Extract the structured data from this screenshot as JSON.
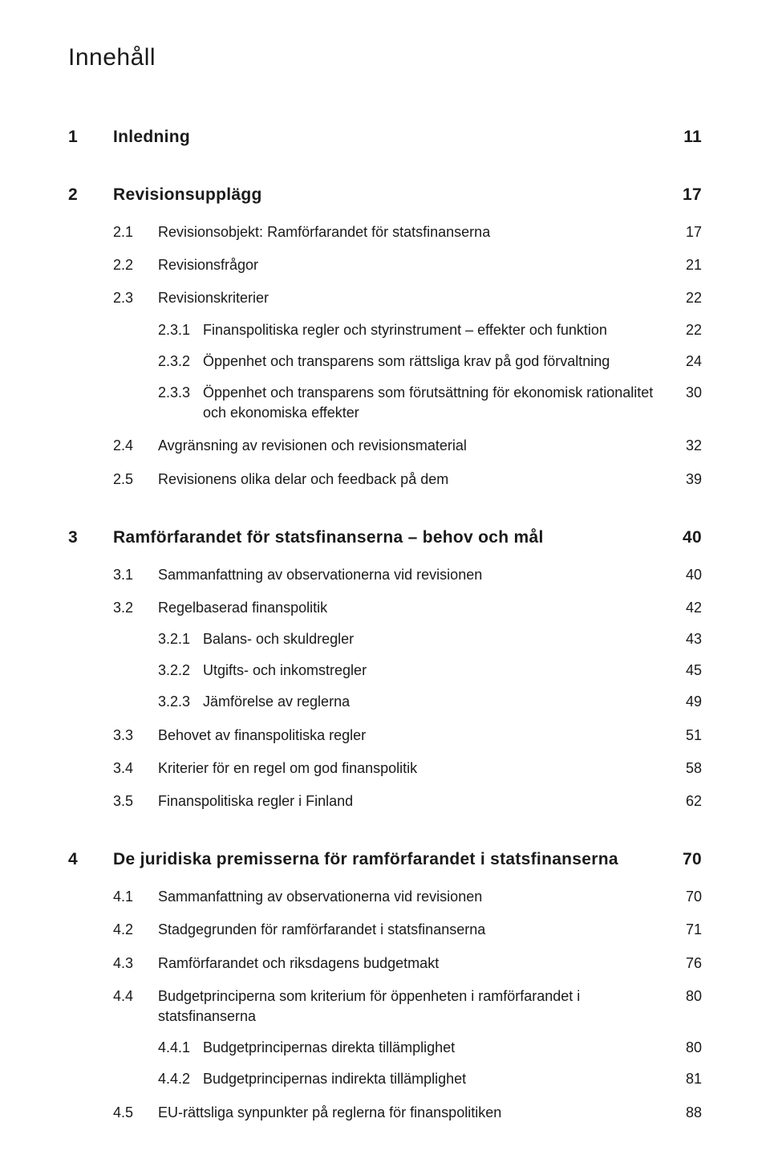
{
  "doc_title": "Innehåll",
  "sections": [
    {
      "num": "1",
      "title": "Inledning",
      "page": "11",
      "subs": []
    },
    {
      "num": "2",
      "title": "Revisionsupplägg",
      "page": "17",
      "subs": [
        {
          "num": "2.1",
          "title": "Revisionsobjekt: Ramförfarandet för statsfinanserna",
          "page": "17",
          "subs": []
        },
        {
          "num": "2.2",
          "title": "Revisionsfrågor",
          "page": "21",
          "subs": []
        },
        {
          "num": "2.3",
          "title": "Revisionskriterier",
          "page": "22",
          "subs": [
            {
              "num": "2.3.1",
              "title": "Finanspolitiska regler och styrinstrument – effekter och funktion",
              "page": "22"
            },
            {
              "num": "2.3.2",
              "title": "Öppenhet och transparens som rättsliga krav på god förvaltning",
              "page": "24"
            },
            {
              "num": "2.3.3",
              "title": "Öppenhet och transparens som förutsättning för ekonomisk rationalitet och ekonomiska effekter",
              "page": "30"
            }
          ]
        },
        {
          "num": "2.4",
          "title": "Avgränsning av revisionen och revisionsmaterial",
          "page": "32",
          "subs": []
        },
        {
          "num": "2.5",
          "title": "Revisionens olika delar och feedback på dem",
          "page": "39",
          "subs": []
        }
      ]
    },
    {
      "num": "3",
      "title": "Ramförfarandet för statsfinanserna – behov och mål",
      "page": "40",
      "subs": [
        {
          "num": "3.1",
          "title": "Sammanfattning av observationerna vid revisionen",
          "page": "40",
          "subs": []
        },
        {
          "num": "3.2",
          "title": "Regelbaserad finanspolitik",
          "page": "42",
          "subs": [
            {
              "num": "3.2.1",
              "title": "Balans- och skuldregler",
              "page": "43"
            },
            {
              "num": "3.2.2",
              "title": "Utgifts- och inkomstregler",
              "page": "45"
            },
            {
              "num": "3.2.3",
              "title": "Jämförelse av reglerna",
              "page": "49"
            }
          ]
        },
        {
          "num": "3.3",
          "title": "Behovet av finanspolitiska regler",
          "page": "51",
          "subs": []
        },
        {
          "num": "3.4",
          "title": "Kriterier för en regel om god finanspolitik",
          "page": "58",
          "subs": []
        },
        {
          "num": "3.5",
          "title": "Finanspolitiska regler i Finland",
          "page": "62",
          "subs": []
        }
      ]
    },
    {
      "num": "4",
      "title": "De juridiska premisserna för ramförfarandet i statsfinanserna",
      "page": "70",
      "subs": [
        {
          "num": "4.1",
          "title": "Sammanfattning av observationerna vid revisionen",
          "page": "70",
          "subs": []
        },
        {
          "num": "4.2",
          "title": "Stadgegrunden för ramförfarandet i statsfinanserna",
          "page": "71",
          "subs": []
        },
        {
          "num": "4.3",
          "title": "Ramförfarandet och riksdagens budgetmakt",
          "page": "76",
          "subs": []
        },
        {
          "num": "4.4",
          "title": "Budgetprinciperna som kriterium för öppenheten i ramförfarandet i statsfinanserna",
          "page": "80",
          "subs": [
            {
              "num": "4.4.1",
              "title": "Budgetprincipernas direkta tillämplighet",
              "page": "80"
            },
            {
              "num": "4.4.2",
              "title": "Budgetprincipernas indirekta tillämplighet",
              "page": "81"
            }
          ]
        },
        {
          "num": "4.5",
          "title": "EU-rättsliga synpunkter på reglerna för finanspolitiken",
          "page": "88",
          "subs": []
        }
      ]
    }
  ]
}
